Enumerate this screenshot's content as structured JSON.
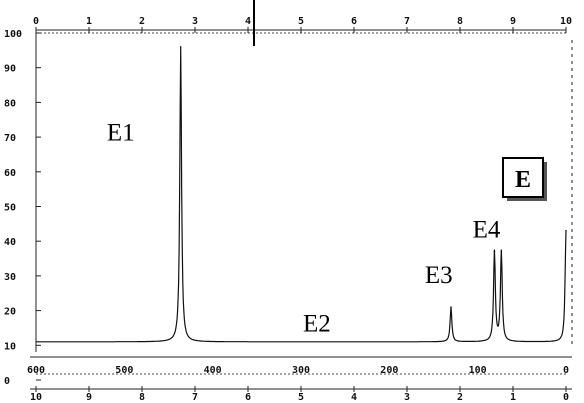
{
  "chart_data": {
    "type": "line",
    "title": "",
    "xlabel": "",
    "ylabel": "",
    "ylim": [
      0,
      100
    ],
    "y_ticks": [
      "100",
      "90",
      "80",
      "70",
      "60",
      "50",
      "40",
      "30",
      "20",
      "10",
      "0"
    ],
    "top_ticks": [
      "0",
      "1",
      "2",
      "3",
      "4",
      "5",
      "6",
      "7",
      "8",
      "9",
      "10"
    ],
    "bottom_ticks": [
      "10",
      "9",
      "8",
      "7",
      "6",
      "5",
      "4",
      "3",
      "2",
      "1",
      "0"
    ],
    "ppm_ticks": [
      "600",
      "500",
      "400",
      "300",
      "200",
      "100",
      "0"
    ],
    "xlim_ppm": [
      10,
      0
    ],
    "series": [
      {
        "baseline": 11,
        "peaks": [
          {
            "ppm": 7.27,
            "height": 96
          },
          {
            "ppm": 2.17,
            "height": 21
          },
          {
            "ppm": 1.35,
            "height": 37
          },
          {
            "ppm": 1.22,
            "height": 37
          },
          {
            "ppm": 0.0,
            "height": 43
          }
        ]
      }
    ],
    "annotations": [
      {
        "text": "E1",
        "ppm": 8.4,
        "y": 69
      },
      {
        "text": "E2",
        "ppm": 4.7,
        "y": 14
      },
      {
        "text": "E3",
        "ppm": 2.4,
        "y": 28
      },
      {
        "text": "E4",
        "ppm": 1.5,
        "y": 41
      }
    ],
    "panel_label": "E",
    "legend": "none",
    "grid": false
  }
}
